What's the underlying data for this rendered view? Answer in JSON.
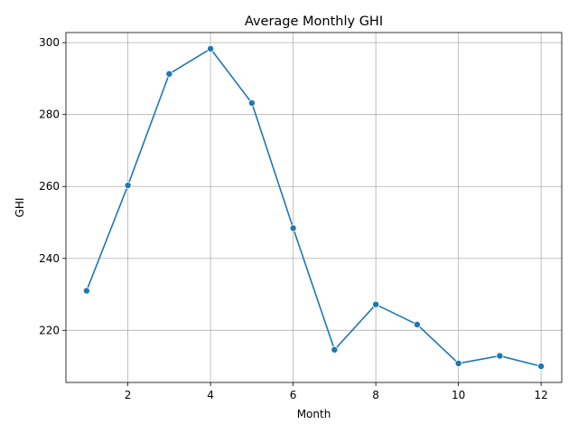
{
  "chart_data": {
    "type": "line",
    "title": "Average Monthly GHI",
    "xlabel": "Month",
    "ylabel": "GHI",
    "xlim": [
      0.5,
      12.5
    ],
    "ylim": [
      205.5,
      302.8
    ],
    "xticks": [
      2,
      4,
      6,
      8,
      10,
      12
    ],
    "yticks": [
      220,
      240,
      260,
      280,
      300
    ],
    "grid": true,
    "legend": "none",
    "colors": {
      "line": "#1f77b4",
      "grid": "#b0b0b0",
      "axis": "#000000"
    },
    "series": [
      {
        "x": [
          1,
          2,
          3,
          4,
          5,
          6,
          7,
          8,
          9,
          10,
          11,
          12
        ],
        "values": [
          231.0,
          260.3,
          291.3,
          298.3,
          283.2,
          248.4,
          214.6,
          227.2,
          221.6,
          210.8,
          212.9,
          210.0
        ]
      }
    ]
  }
}
